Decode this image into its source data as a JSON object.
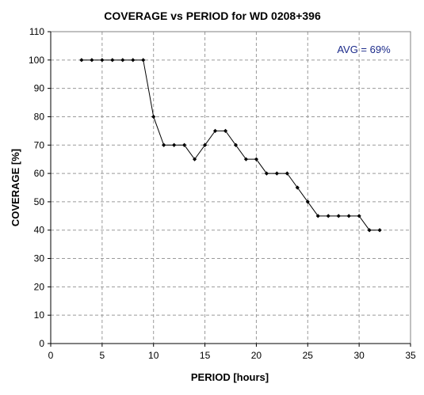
{
  "chart_data": {
    "type": "line",
    "title": "COVERAGE vs PERIOD for WD 0208+396",
    "xlabel": "PERIOD [hours]",
    "ylabel": "COVERAGE [%]",
    "xlim": [
      0,
      35
    ],
    "ylim": [
      0,
      110
    ],
    "x_ticks": [
      0,
      5,
      10,
      15,
      20,
      25,
      30,
      35
    ],
    "y_ticks": [
      0,
      10,
      20,
      30,
      40,
      50,
      60,
      70,
      80,
      90,
      100,
      110
    ],
    "grid": true,
    "annotation": "AVG = 69%",
    "series": [
      {
        "color": "#000000",
        "x": [
          3,
          4,
          5,
          6,
          7,
          8,
          9,
          10,
          11,
          12,
          13,
          14,
          15,
          16,
          17,
          18,
          19,
          20,
          21,
          22,
          23,
          24,
          25,
          26,
          27,
          28,
          29,
          30,
          31,
          32
        ],
        "y": [
          100,
          100,
          100,
          100,
          100,
          100,
          100,
          80,
          70,
          70,
          70,
          65,
          70,
          75,
          75,
          70,
          65,
          65,
          60,
          60,
          60,
          55,
          50,
          45,
          45,
          45,
          45,
          45,
          40,
          40
        ]
      }
    ]
  }
}
